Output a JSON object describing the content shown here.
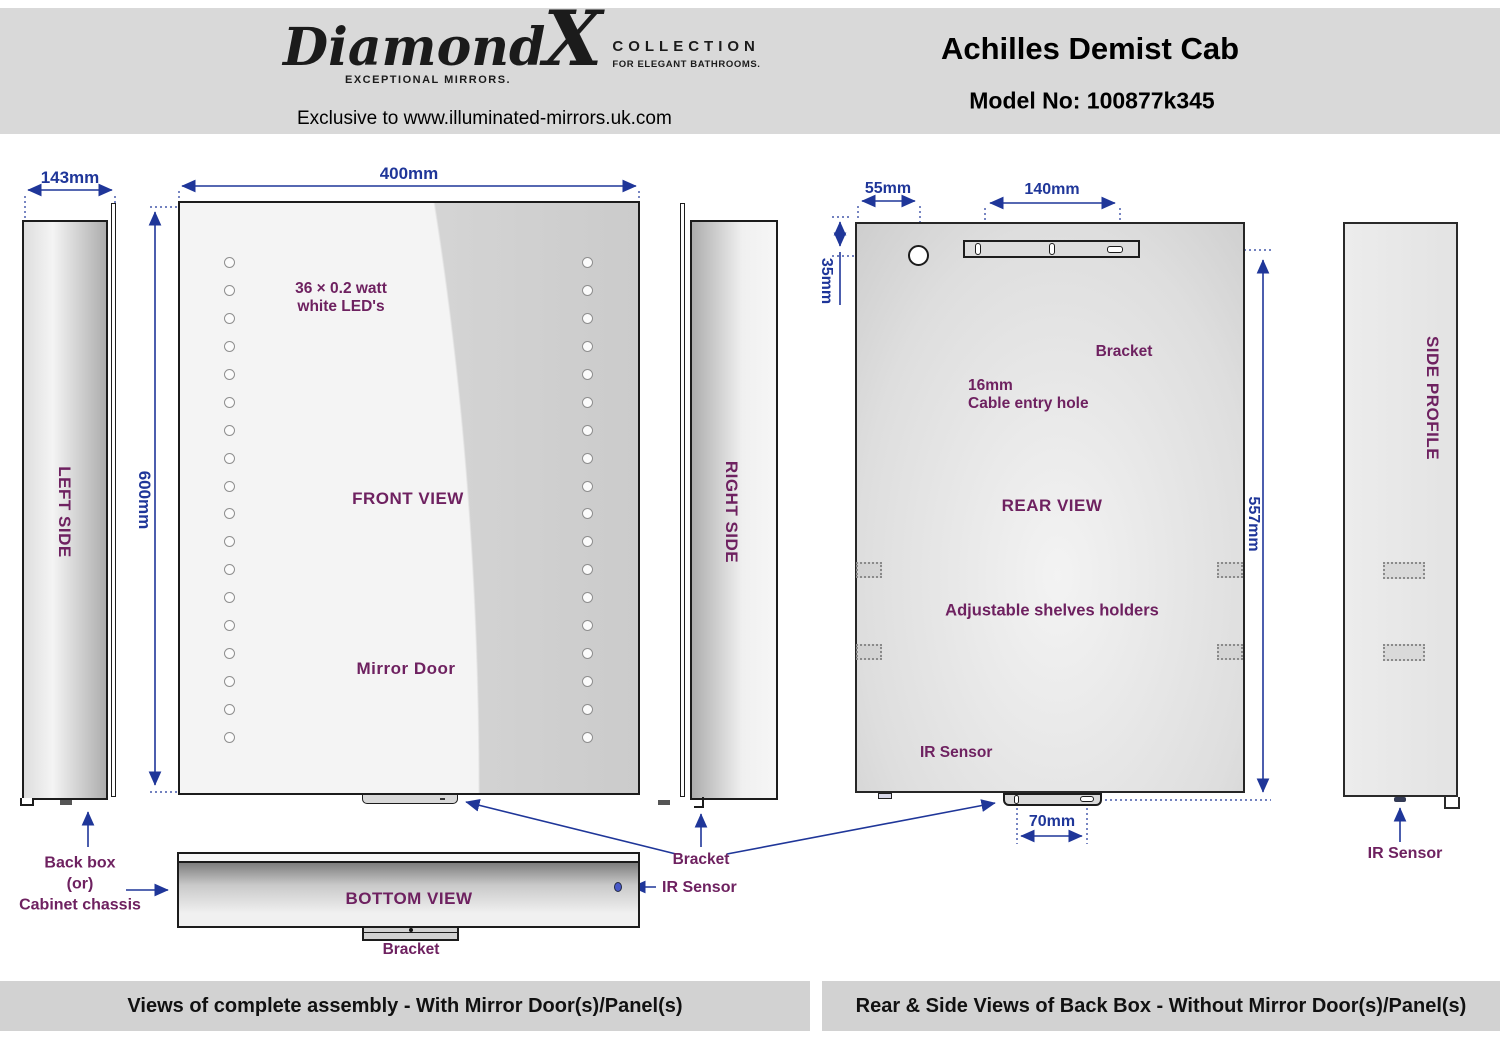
{
  "colors": {
    "dimension_blue": "#1F3699",
    "label_purple": "#6E2160",
    "panel_border": "#1c1c1c",
    "header_gray": "#d9d9d9",
    "caption_gray": "#d2d2d2"
  },
  "header": {
    "logo": {
      "script": "Diamond",
      "x": "X",
      "tagline_left": "EXCEPTIONAL MIRRORS.",
      "collection": "COLLECTION",
      "tagline_right": "FOR ELEGANT BATHROOMS.",
      "exclusive": "Exclusive to www.illuminated-mirrors.uk.com"
    },
    "title": "Achilles Demist Cab",
    "model": "Model No: 100877k345"
  },
  "dimensions": {
    "d143": "143mm",
    "d400": "400mm",
    "d600": "600mm",
    "d55": "55mm",
    "d140": "140mm",
    "d35": "35mm",
    "d557": "557mm",
    "d70": "70mm"
  },
  "views": {
    "left_side": {
      "label": "LEFT SIDE"
    },
    "front": {
      "label": "FRONT VIEW",
      "mirror_door": "Mirror Door",
      "led_note_line1": "36 × 0.2 watt",
      "led_note_line2": "white LED's",
      "leds_per_column": 18
    },
    "right_side": {
      "label": "RIGHT SIDE"
    },
    "rear": {
      "label": "REAR VIEW",
      "bracket": "Bracket",
      "cable_line1": "16mm",
      "cable_line2": "Cable entry hole",
      "shelves": "Adjustable shelves holders",
      "ir_sensor": "IR Sensor"
    },
    "side_profile": {
      "label": "SIDE PROFILE",
      "ir_sensor": "IR Sensor"
    },
    "bottom": {
      "label": "BOTTOM VIEW",
      "bracket": "Bracket",
      "ir_sensor": "IR Sensor",
      "back_box_line1": "Back box",
      "back_box_line2": "(or)",
      "back_box_line3": "Cabinet chassis"
    }
  },
  "shared": {
    "bracket": "Bracket"
  },
  "captions": {
    "left": "Views of complete assembly - With Mirror Door(s)/Panel(s)",
    "right": "Rear & Side Views of Back Box - Without Mirror Door(s)/Panel(s)"
  }
}
